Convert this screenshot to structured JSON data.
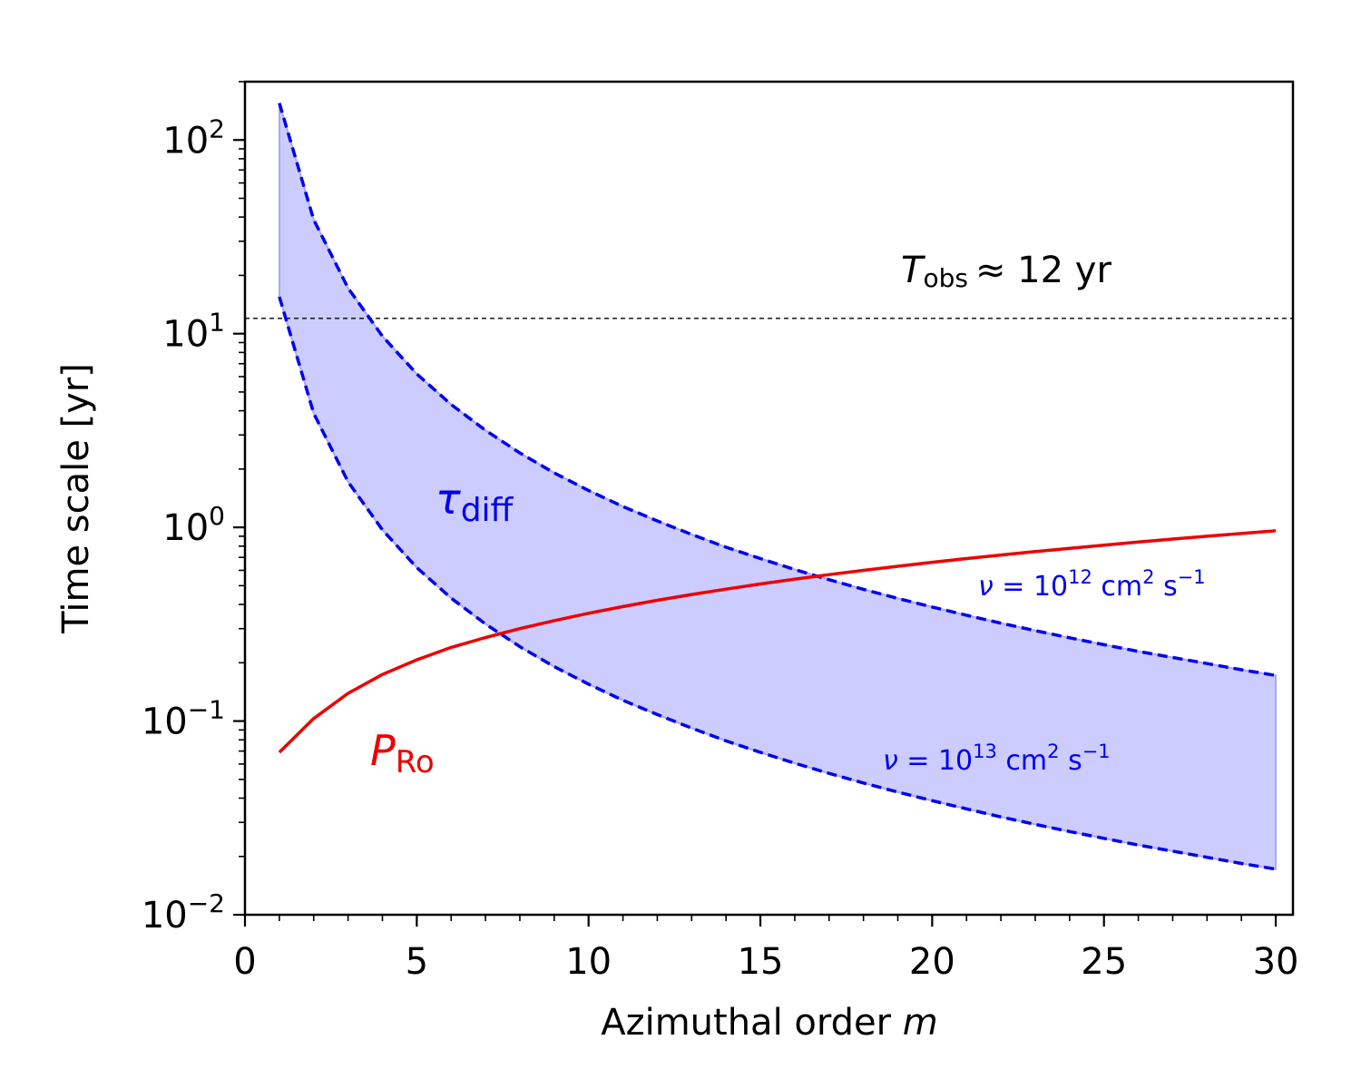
{
  "chart_data": {
    "type": "line",
    "xlabel": {
      "text": "Azimuthal order ",
      "var": "m"
    },
    "ylabel": "Time scale [yr]",
    "xlim": [
      0,
      30.5
    ],
    "ylim": [
      0.01,
      200
    ],
    "yscale": "log",
    "grid": false,
    "x_ticks": [
      {
        "value": 0,
        "label": "0"
      },
      {
        "value": 5,
        "label": "5"
      },
      {
        "value": 10,
        "label": "10"
      },
      {
        "value": 15,
        "label": "15"
      },
      {
        "value": 20,
        "label": "20"
      },
      {
        "value": 25,
        "label": "25"
      },
      {
        "value": 30,
        "label": "30"
      }
    ],
    "y_ticks": [
      {
        "value": 0.01,
        "base": "10",
        "exp": "−2"
      },
      {
        "value": 0.1,
        "base": "10",
        "exp": "−1"
      },
      {
        "value": 1,
        "base": "10",
        "exp": "0"
      },
      {
        "value": 10,
        "base": "10",
        "exp": "1"
      },
      {
        "value": 100,
        "base": "10",
        "exp": "2"
      }
    ],
    "m": [
      1,
      2,
      3,
      4,
      5,
      6,
      7,
      8,
      9,
      10,
      11,
      12,
      13,
      14,
      15,
      16,
      17,
      18,
      19,
      20,
      21,
      22,
      23,
      24,
      25,
      26,
      27,
      28,
      29,
      30
    ],
    "series": [
      {
        "key": "tau_upper",
        "color": "#0000ee",
        "values": [
          155,
          38.8,
          17.2,
          9.7,
          6.2,
          4.31,
          3.17,
          2.42,
          1.91,
          1.55,
          1.28,
          1.08,
          0.92,
          0.79,
          0.69,
          0.606,
          0.537,
          0.479,
          0.43,
          0.388,
          0.352,
          0.32,
          0.293,
          0.269,
          0.248,
          0.229,
          0.213,
          0.198,
          0.184,
          0.172
        ]
      },
      {
        "key": "tau_lower",
        "color": "#0000ee",
        "values": [
          15.5,
          3.88,
          1.72,
          0.97,
          0.62,
          0.431,
          0.317,
          0.242,
          0.191,
          0.155,
          0.128,
          0.108,
          0.092,
          0.079,
          0.069,
          0.0606,
          0.0537,
          0.0479,
          0.043,
          0.0388,
          0.0352,
          0.032,
          0.0293,
          0.0269,
          0.0248,
          0.0229,
          0.0213,
          0.0198,
          0.0184,
          0.0172
        ]
      },
      {
        "key": "P_Ro",
        "color": "#ee0000",
        "values": [
          0.069,
          0.103,
          0.139,
          0.174,
          0.207,
          0.24,
          0.27,
          0.3,
          0.33,
          0.36,
          0.39,
          0.42,
          0.45,
          0.48,
          0.51,
          0.54,
          0.57,
          0.6,
          0.63,
          0.66,
          0.69,
          0.72,
          0.75,
          0.78,
          0.81,
          0.84,
          0.87,
          0.9,
          0.93,
          0.96
        ]
      }
    ],
    "band_fill": "#ccccff",
    "reference_line": {
      "value": 12
    },
    "annotations": {
      "tobs": {
        "var": "T",
        "sub": "obs",
        "rest": "≈ 12 yr",
        "color": "#000000"
      },
      "tau": {
        "var": "τ",
        "sub": "diff",
        "color": "#0000ee"
      },
      "pro": {
        "var": "P",
        "sub": "Ro",
        "color": "#ee0000"
      },
      "nu12": {
        "var": "ν",
        "mid": " = 10",
        "exp": "12",
        "unit": " cm",
        "unit_exp": "2",
        "s": " s",
        "s_exp": "−1",
        "color": "#0000ee"
      },
      "nu13": {
        "var": "ν",
        "mid": " = 10",
        "exp": "13",
        "unit": " cm",
        "unit_exp": "2",
        "s": " s",
        "s_exp": "−1",
        "color": "#0000ee"
      }
    }
  }
}
